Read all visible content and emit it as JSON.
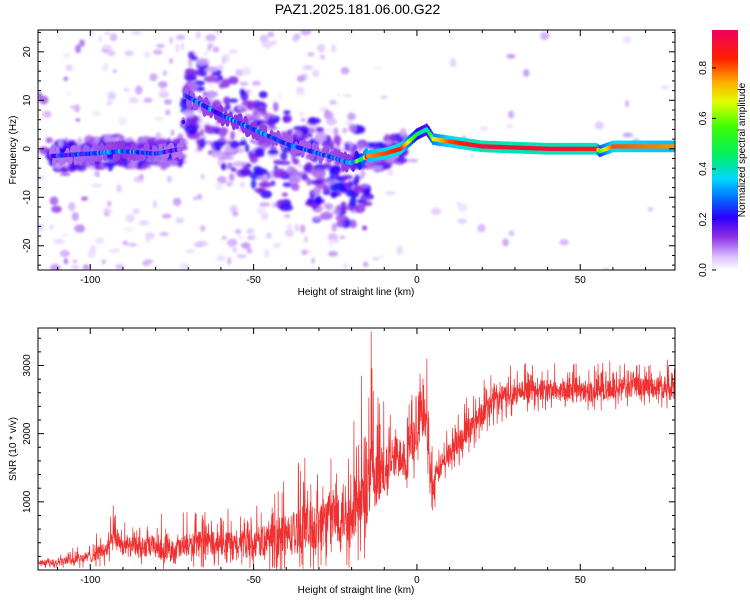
{
  "figure_title": "PAZ1.2025.181.06.00.G22",
  "chart_data": [
    {
      "type": "heatmap",
      "xlabel": "Height of straight line (km)",
      "ylabel": "Frequency (Hz)",
      "xlim": [
        -116,
        79
      ],
      "ylim": [
        -25,
        24.5
      ],
      "xticks": [
        -100,
        -50,
        0,
        50
      ],
      "yticks": [
        -20,
        -10,
        0,
        10,
        20
      ],
      "colorbar": {
        "label": "Normalized spectral amplitude",
        "range": [
          0,
          0.95
        ],
        "ticks": [
          "0.0",
          "0.2",
          "0.4",
          "0.6",
          "0.8"
        ],
        "tick_values": [
          0.0,
          0.2,
          0.4,
          0.6,
          0.8
        ]
      },
      "ridge": {
        "x": [
          -112,
          -100,
          -90,
          -80,
          -72,
          -71,
          -60,
          -50,
          -40,
          -30,
          -20,
          -15,
          -10,
          -5,
          0,
          3,
          5,
          10,
          20,
          40,
          55,
          56,
          60,
          79
        ],
        "y": [
          -1.5,
          -1,
          -0.5,
          -1,
          0,
          11,
          7,
          4,
          1,
          -1,
          -3,
          -1.5,
          -1,
          0,
          3,
          4,
          2,
          1.5,
          0.5,
          0,
          0,
          -0.5,
          0.5,
          0.5
        ],
        "value": [
          0.2,
          0.25,
          0.3,
          0.25,
          0.15,
          0.25,
          0.3,
          0.3,
          0.25,
          0.25,
          0.3,
          0.8,
          0.85,
          0.9,
          0.5,
          0.4,
          0.7,
          0.85,
          0.95,
          0.95,
          0.9,
          0.6,
          0.85,
          0.8
        ]
      },
      "grid": false
    },
    {
      "type": "line",
      "xlabel": "Height of straight line (km)",
      "ylabel": "SNR (10 * v/v)",
      "xlim": [
        -116,
        79
      ],
      "ylim": [
        0,
        3550
      ],
      "xticks": [
        -100,
        -50,
        0,
        50
      ],
      "yticks": [
        1000,
        2000,
        3000
      ],
      "series": [
        {
          "color": "#f03030",
          "x": [
            -116,
            -110,
            -105,
            -100,
            -95,
            -92,
            -90,
            -85,
            -80,
            -75,
            -70,
            -65,
            -60,
            -55,
            -50,
            -45,
            -40,
            -35,
            -30,
            -25,
            -20,
            -17,
            -15,
            -14,
            -13,
            -12,
            -10,
            -8,
            -5,
            -3,
            -2,
            0,
            2,
            3,
            4,
            5,
            7,
            10,
            15,
            20,
            25,
            30,
            40,
            50,
            60,
            70,
            79
          ],
          "mean": [
            100,
            120,
            150,
            200,
            300,
            500,
            350,
            320,
            350,
            300,
            350,
            400,
            400,
            350,
            400,
            450,
            500,
            600,
            650,
            800,
            900,
            1000,
            1200,
            1500,
            1200,
            1300,
            1500,
            1600,
            1700,
            1650,
            1800,
            2000,
            2300,
            2100,
            1400,
            1200,
            1500,
            1700,
            2000,
            2300,
            2500,
            2600,
            2650,
            2600,
            2650,
            2700,
            2650
          ],
          "spread": [
            60,
            80,
            100,
            150,
            200,
            300,
            250,
            250,
            300,
            250,
            300,
            300,
            300,
            300,
            350,
            400,
            500,
            600,
            650,
            700,
            750,
            800,
            900,
            1000,
            900,
            700,
            600,
            600,
            500,
            500,
            500,
            500,
            500,
            500,
            400,
            300,
            300,
            300,
            300,
            300,
            300,
            300,
            250,
            250,
            250,
            250,
            250
          ],
          "spikes": [
            {
              "x": -14,
              "y": 3500
            },
            {
              "x": -17,
              "y": 2850
            },
            {
              "x": 3,
              "y": 3100
            },
            {
              "x": -93,
              "y": 950
            }
          ]
        }
      ],
      "grid": false
    }
  ]
}
